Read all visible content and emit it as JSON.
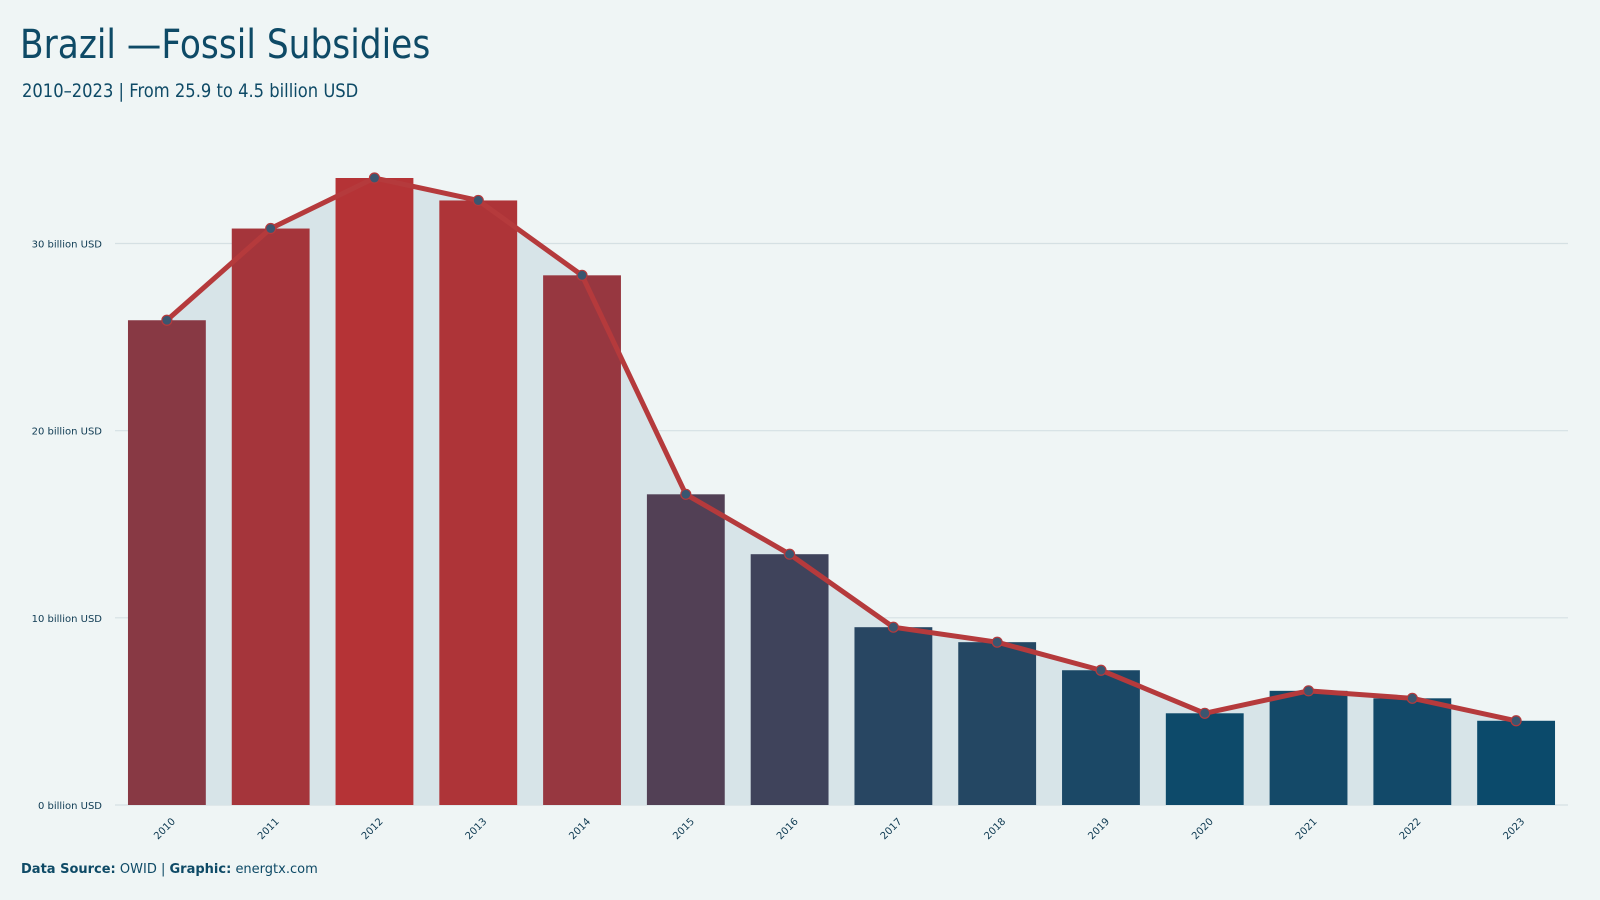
{
  "header": {
    "title": "Brazil —Fossil Subsidies",
    "subtitle": "2010–2023 | From 25.9 to 4.5 billion USD"
  },
  "footer": {
    "source_label": "Data Source:",
    "source_value": "OWID",
    "separator": "|",
    "graphic_label": "Graphic:",
    "graphic_value": "energtx.com"
  },
  "colors": {
    "background": "#eff5f5",
    "area_fill": "#d7e4e8",
    "line": "#b53a3c",
    "marker": "#3a5670",
    "grid": "#d5e0e3",
    "text": "#0e4a66",
    "bar_high": "#b53336",
    "bar_low": "#0b4a6b"
  },
  "chart_data": {
    "type": "bar",
    "categories": [
      "2010",
      "2011",
      "2012",
      "2013",
      "2014",
      "2015",
      "2016",
      "2017",
      "2018",
      "2019",
      "2020",
      "2021",
      "2022",
      "2023"
    ],
    "values": [
      25.9,
      30.8,
      33.5,
      32.3,
      28.3,
      16.6,
      13.4,
      9.5,
      8.7,
      7.2,
      4.9,
      6.1,
      5.7,
      4.5
    ],
    "overlay": "line-with-markers-and-area",
    "ylim": [
      0,
      33.5
    ],
    "yticks": [
      0,
      10,
      20,
      30
    ],
    "ytick_labels": [
      "0 billion USD",
      "10 billion USD",
      "20 billion USD",
      "30 billion USD"
    ],
    "grid": true,
    "legend": "none",
    "xlabel": "",
    "ylabel": ""
  }
}
